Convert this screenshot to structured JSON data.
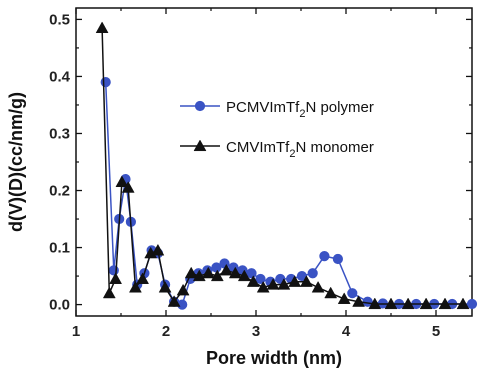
{
  "chart_data": {
    "type": "line",
    "xlabel": "Pore width (nm)",
    "ylabel": "d(V)(D)(cc/nm/g)",
    "xlim": [
      1.0,
      5.4
    ],
    "ylim": [
      -0.02,
      0.52
    ],
    "x_ticks": [
      1,
      2,
      3,
      4,
      5
    ],
    "y_ticks": [
      0.0,
      0.1,
      0.2,
      0.3,
      0.4,
      0.5
    ],
    "x_tick_labels": [
      "1",
      "2",
      "3",
      "4",
      "5"
    ],
    "y_tick_labels": [
      "0.0",
      "0.1",
      "0.2",
      "0.3",
      "0.4",
      "0.5"
    ],
    "legend_position": "center-right",
    "series": [
      {
        "name": "PCMVImTf2N polymer",
        "legend_label": "PCMVImTf",
        "legend_sub": "2",
        "legend_suffix": "N polymer",
        "color": "#3a53c4",
        "marker": "circle",
        "x": [
          1.33,
          1.42,
          1.48,
          1.55,
          1.61,
          1.68,
          1.76,
          1.84,
          1.91,
          1.99,
          2.09,
          2.18,
          2.27,
          2.36,
          2.46,
          2.56,
          2.65,
          2.75,
          2.85,
          2.95,
          3.05,
          3.16,
          3.27,
          3.39,
          3.51,
          3.63,
          3.76,
          3.91,
          4.07,
          4.24,
          4.41,
          4.59,
          4.78,
          4.98,
          5.18,
          5.4
        ],
        "y": [
          0.39,
          0.06,
          0.15,
          0.22,
          0.145,
          0.035,
          0.055,
          0.095,
          0.09,
          0.035,
          0.005,
          0.0,
          0.045,
          0.055,
          0.06,
          0.065,
          0.072,
          0.065,
          0.06,
          0.055,
          0.045,
          0.04,
          0.045,
          0.045,
          0.05,
          0.055,
          0.085,
          0.08,
          0.02,
          0.005,
          0.002,
          0.001,
          0.001,
          0.001,
          0.001,
          0.001
        ]
      },
      {
        "name": "CMVImTf2N monomer",
        "legend_label": "CMVImTf",
        "legend_sub": "2",
        "legend_suffix": "N monomer",
        "color": "#111111",
        "marker": "triangle",
        "x": [
          1.29,
          1.37,
          1.44,
          1.51,
          1.58,
          1.66,
          1.74,
          1.83,
          1.91,
          1.99,
          2.09,
          2.19,
          2.28,
          2.37,
          2.47,
          2.57,
          2.67,
          2.77,
          2.87,
          2.97,
          3.08,
          3.19,
          3.31,
          3.43,
          3.56,
          3.69,
          3.83,
          3.98,
          4.14,
          4.32,
          4.5,
          4.69,
          4.89,
          5.1,
          5.3
        ],
        "y": [
          0.485,
          0.02,
          0.045,
          0.215,
          0.205,
          0.03,
          0.045,
          0.09,
          0.095,
          0.03,
          0.005,
          0.025,
          0.055,
          0.05,
          0.055,
          0.05,
          0.06,
          0.055,
          0.05,
          0.04,
          0.03,
          0.035,
          0.035,
          0.04,
          0.04,
          0.03,
          0.02,
          0.01,
          0.005,
          0.001,
          0.001,
          0.001,
          0.001,
          0.001,
          0.001
        ]
      }
    ]
  }
}
